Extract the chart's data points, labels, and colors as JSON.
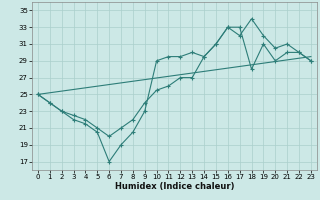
{
  "xlabel": "Humidex (Indice chaleur)",
  "bg_color": "#cce8e6",
  "line_color": "#2d7d78",
  "grid_color": "#aacfcc",
  "xlim": [
    -0.5,
    23.5
  ],
  "ylim": [
    16,
    36
  ],
  "yticks": [
    17,
    19,
    21,
    23,
    25,
    27,
    29,
    31,
    33,
    35
  ],
  "xticks": [
    0,
    1,
    2,
    3,
    4,
    5,
    6,
    7,
    8,
    9,
    10,
    11,
    12,
    13,
    14,
    15,
    16,
    17,
    18,
    19,
    20,
    21,
    22,
    23
  ],
  "line1_x": [
    0,
    1,
    2,
    3,
    4,
    5,
    6,
    7,
    8,
    9,
    10,
    11,
    12,
    13,
    14,
    15,
    16,
    17,
    18,
    19,
    20,
    21,
    22,
    23
  ],
  "line1_y": [
    25,
    24,
    23,
    22.5,
    22,
    21,
    20,
    21,
    22,
    24,
    25.5,
    26,
    27,
    27,
    29.5,
    31,
    33,
    32,
    34,
    32,
    30.5,
    31,
    30,
    29
  ],
  "line2_x": [
    0,
    1,
    2,
    3,
    4,
    5,
    6,
    7,
    8,
    9,
    10,
    11,
    12,
    13,
    14,
    15,
    16,
    17,
    18,
    19,
    20,
    21,
    22,
    23
  ],
  "line2_y": [
    25,
    24,
    23,
    22,
    21.5,
    20.5,
    17,
    19,
    20.5,
    23,
    29,
    29.5,
    29.5,
    30,
    29.5,
    31,
    33,
    33,
    28,
    31,
    29,
    30,
    30,
    29
  ],
  "line3_x": [
    0,
    23
  ],
  "line3_y": [
    25,
    29.5
  ]
}
